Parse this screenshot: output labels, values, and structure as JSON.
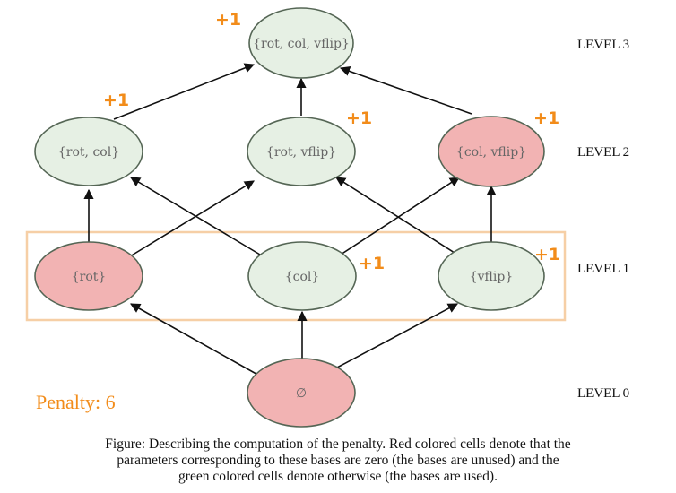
{
  "colors": {
    "used": "#e6f0e4",
    "unused": "#f2b3b3",
    "node_stroke": "#556655",
    "plus": "#f28c1a",
    "box": "#f6cfa6"
  },
  "nodes": {
    "l3": "{rot, col, vflip}",
    "rot_col": "{rot, col}",
    "rot_vflip": "{rot, vflip}",
    "col_vflip": "{col, vflip}",
    "rot": "{rot}",
    "col": "{col}",
    "vflip": "{vflip}",
    "empty": "∅"
  },
  "plus_one": "+1",
  "levels": [
    "LEVEL 0",
    "LEVEL 1",
    "LEVEL 2",
    "LEVEL 3"
  ],
  "penalty": "Penalty: 6",
  "caption": [
    "Figure: Describing the computation of the penalty. Red colored cells denote that the",
    "parameters corresponding to these bases are zero (the bases are unused) and the",
    "green colored cells denote otherwise (the bases are used)."
  ]
}
